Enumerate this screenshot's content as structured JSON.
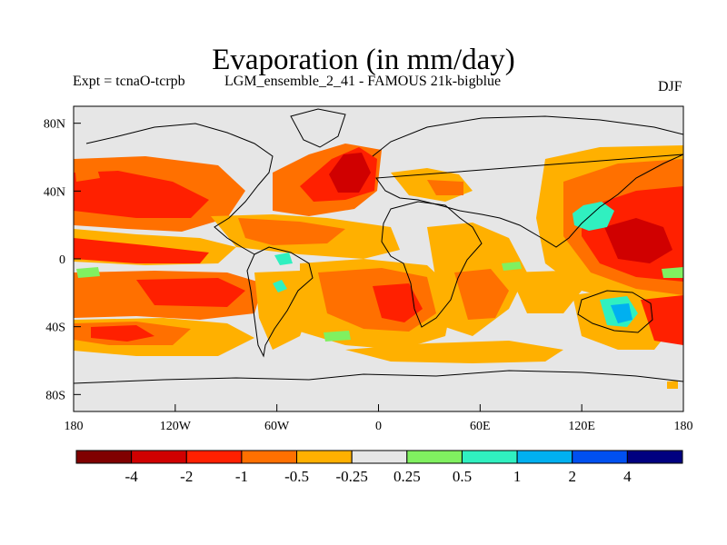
{
  "title": "Evaporation (in mm/day)",
  "expt_label": "Expt = tcnaO-tcrpb",
  "run_label": "LGM_ensemble_2_41 - FAMOUS 21k-bigblue",
  "season": "DJF",
  "map": {
    "projection": "cylindrical equidistant",
    "background_color": "#e6e6e6",
    "lat_ticks": [
      "80N",
      "40N",
      "0",
      "40S",
      "80S"
    ],
    "lon_ticks": [
      "180",
      "120W",
      "60W",
      "0",
      "60E",
      "120E",
      "180"
    ]
  },
  "colorbar": {
    "labels": [
      "-4",
      "-2",
      "-1",
      "-0.5",
      "-0.25",
      "0.25",
      "0.5",
      "1",
      "2",
      "4"
    ],
    "colors": [
      "#800000",
      "#d00000",
      "#ff2000",
      "#ff7000",
      "#ffb000",
      "#e6e6e6",
      "#80f060",
      "#30f0c0",
      "#00b0f0",
      "#0050f0",
      "#000080"
    ]
  }
}
